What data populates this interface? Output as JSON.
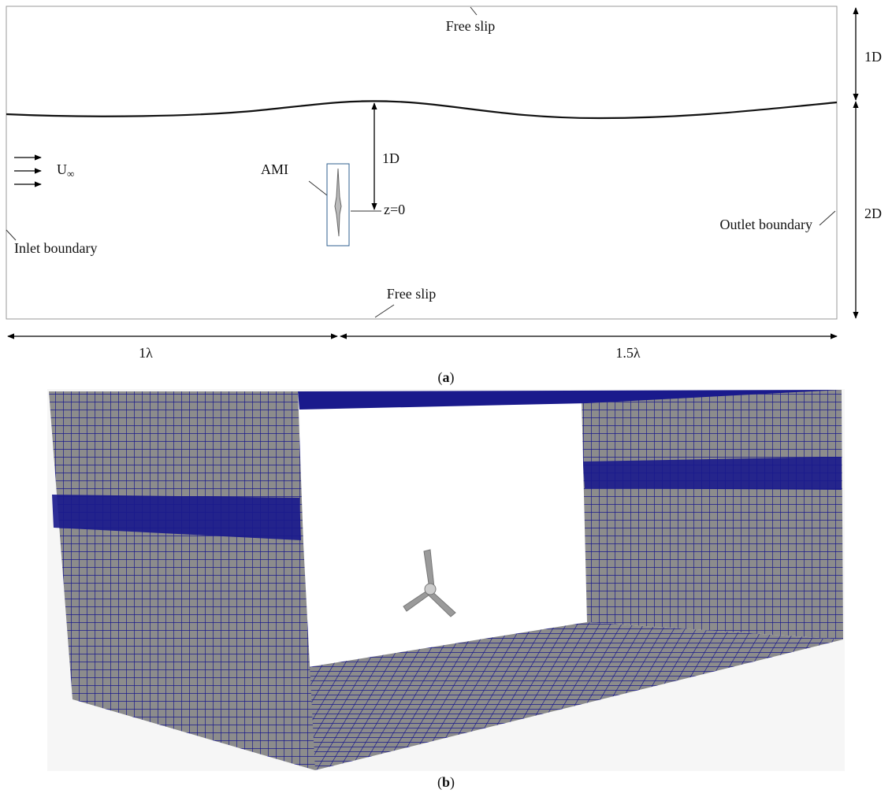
{
  "panel_a": {
    "top_boundary": "Free slip",
    "bottom_boundary": "Free slip",
    "inlet": "Inlet boundary",
    "outlet": "Outlet boundary",
    "velocity": {
      "symbol": "U",
      "subscript": "∞"
    },
    "ami": "AMI",
    "depth_label": "1D",
    "z_label": "z=0",
    "air_height": "1D",
    "water_height": "2D",
    "upstream_length": "1λ",
    "downstream_length": "1.5λ",
    "caption": [
      "(",
      "a",
      ")"
    ]
  },
  "panel_b": {
    "caption": [
      "(",
      "b",
      ")"
    ]
  }
}
